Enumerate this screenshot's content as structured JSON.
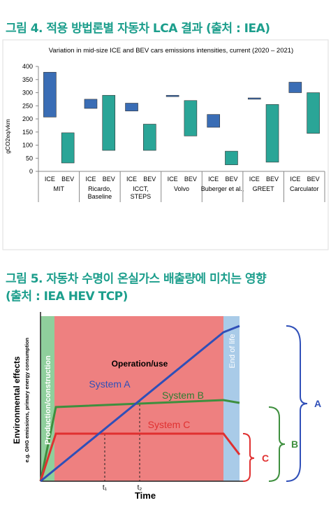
{
  "captions": [
    "그림 4. 적용 방법론별 자동차 LCA 결과 (출처 : IEA)",
    "그림 5. 자동차 수명이 온실가스 배출량에 미치는 영향",
    "(출처 : IEA HEV TCP)"
  ],
  "chart_data": {
    "type": "floating-bar",
    "title": "Variation in mid-size ICE and BEV cars emissions intensities, current (2020 – 2021)",
    "y_label": "gCO2eq/vkm",
    "categories": [
      "MIT",
      "Ricardo, Baseline",
      "ICCT, STEPS",
      "Volvo",
      "Buberger et al.,",
      "GREET",
      "Carculator"
    ],
    "series": [
      {
        "name": "ICE",
        "color": "#3a6db5",
        "low": [
          207,
          240,
          230,
          285,
          168,
          275,
          300
        ],
        "high": [
          378,
          275,
          260,
          290,
          217,
          280,
          340
        ]
      },
      {
        "name": "BEV",
        "color": "#2aa597",
        "low": [
          32,
          80,
          80,
          135,
          25,
          35,
          145
        ],
        "high": [
          147,
          290,
          180,
          270,
          77,
          255,
          300
        ]
      }
    ],
    "ylim": [
      0,
      400
    ],
    "yticks": [
      0,
      50,
      100,
      150,
      200,
      250,
      300,
      350,
      400
    ]
  },
  "diagram": {
    "phases": [
      "Production/construction",
      "Operation/use",
      "End of life"
    ],
    "systems": [
      "System A",
      "System B",
      "System C"
    ],
    "y_label": "Environmental effects",
    "y_sublabel": "e.g. GHG emissions, primary energy consumption",
    "x_label": "Time",
    "times": [
      "t₁",
      "t₂"
    ],
    "braces": [
      "A",
      "B",
      "C"
    ]
  }
}
